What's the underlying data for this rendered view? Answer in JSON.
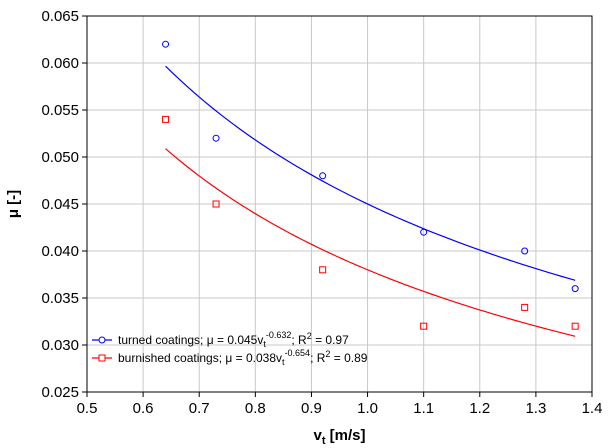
{
  "chart_data": {
    "type": "scatter",
    "xlabel": {
      "main": "v",
      "sub": "t",
      "rest": " [m/s]"
    },
    "ylabel": "μ [-]",
    "xlim": [
      0.5,
      1.4
    ],
    "ylim": [
      0.025,
      0.065
    ],
    "x_ticks": [
      "0.5",
      "0.6",
      "0.7",
      "0.8",
      "0.9",
      "1.0",
      "1.1",
      "1.2",
      "1.3",
      "1.4"
    ],
    "y_ticks": [
      "0.025",
      "0.030",
      "0.035",
      "0.040",
      "0.045",
      "0.050",
      "0.055",
      "0.060",
      "0.065"
    ],
    "grid": true,
    "legend_position": "bottom-left",
    "series": [
      {
        "name": "turned coatings",
        "color": "#0000ff",
        "marker": "circle",
        "x": [
          0.64,
          0.73,
          0.92,
          1.1,
          1.28,
          1.37
        ],
        "y": [
          0.062,
          0.052,
          0.048,
          0.042,
          0.04,
          0.036
        ],
        "fit": {
          "a": 0.045,
          "b": -0.632,
          "r2": "0.97"
        },
        "legend": {
          "name": "turned coatings; μ = 0.045v",
          "sub": "t",
          "sup": "-0.632",
          "tail": "; R",
          "sup2": "2",
          "end": " = 0.97"
        }
      },
      {
        "name": "burnished  coatings",
        "color": "#ff0000",
        "marker": "square",
        "x": [
          0.64,
          0.73,
          0.92,
          1.1,
          1.28,
          1.37
        ],
        "y": [
          0.054,
          0.045,
          0.038,
          0.032,
          0.034,
          0.032
        ],
        "fit": {
          "a": 0.038,
          "b": -0.654,
          "r2": "0.89"
        },
        "legend": {
          "name": "burnished  coatings; μ = 0.038v",
          "sub": "t",
          "sup": "-0.654",
          "tail": "; R",
          "sup2": "2",
          "end": " = 0.89"
        }
      }
    ]
  }
}
